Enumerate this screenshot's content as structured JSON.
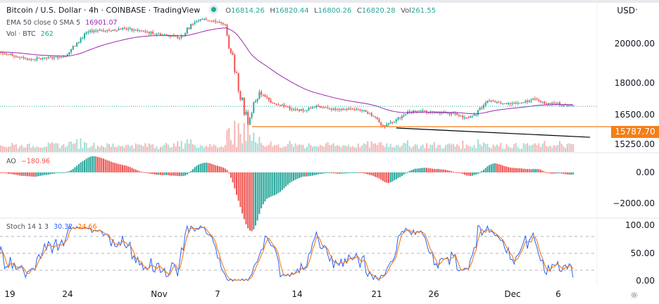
{
  "header": {
    "title": "Bitcoin / U.S. Dollar · 4h · COINBASE · TradingView",
    "ohlc": {
      "o_label": "O",
      "o": "16814.26",
      "h_label": "H",
      "h": "16820.44",
      "l_label": "L",
      "l": "16800.26",
      "c_label": "C",
      "c": "16820.28",
      "vol_label": "Vol",
      "vol": "261.55"
    },
    "ema_label": "EMA 50 close 0 SMA 5",
    "ema_value": "16901.07",
    "vol_label": "Vol · BTC",
    "vol_value": "262",
    "currency": "USD"
  },
  "indicators": {
    "ao_label": "AO",
    "ao_value": "−180.96",
    "stoch_label": "Stoch 14 1 3",
    "stoch_k": "30.32",
    "stoch_d": "24.66"
  },
  "colors": {
    "up": "#26a69a",
    "down": "#ef5350",
    "ema": "#9c27b0",
    "level": "#f57f17",
    "stoch_k": "#2962ff",
    "stoch_d": "#ff6d00",
    "trendline": "#000000"
  },
  "chart_data": [
    {
      "type": "candlestick",
      "title": "Bitcoin / U.S. Dollar · 4h · COINBASE",
      "x_tick_labels": [
        "19",
        "24",
        "Nov",
        "7",
        "14",
        "21",
        "26",
        "Dec",
        "6"
      ],
      "y_tick_labels": [
        "20000.00",
        "18000.00",
        "16500.00",
        "15250.00"
      ],
      "ylim": [
        15000,
        21400
      ],
      "dates": [
        "Oct 18",
        "Oct 19",
        "Oct 20",
        "Oct 21",
        "Oct 22",
        "Oct 23",
        "Oct 24",
        "Oct 25",
        "Oct 26",
        "Oct 27",
        "Oct 28",
        "Oct 29",
        "Oct 30",
        "Oct 31",
        "Nov 1",
        "Nov 2",
        "Nov 3",
        "Nov 4",
        "Nov 5",
        "Nov 6",
        "Nov 7",
        "Nov 8",
        "Nov 9",
        "Nov 10",
        "Nov 11",
        "Nov 12",
        "Nov 13",
        "Nov 14",
        "Nov 15",
        "Nov 16",
        "Nov 17",
        "Nov 18",
        "Nov 19",
        "Nov 20",
        "Nov 21",
        "Nov 22",
        "Nov 23",
        "Nov 24",
        "Nov 25",
        "Nov 26",
        "Nov 27",
        "Nov 28",
        "Nov 29",
        "Nov 30",
        "Dec 1",
        "Dec 2",
        "Dec 3",
        "Dec 4",
        "Dec 5",
        "Dec 6",
        "Dec 7",
        "Dec 8"
      ],
      "close": [
        19600,
        19450,
        19300,
        19200,
        19250,
        19300,
        19350,
        20050,
        20600,
        20700,
        20650,
        20800,
        20700,
        20600,
        20500,
        20400,
        20300,
        21000,
        21250,
        21150,
        20950,
        18500,
        15900,
        17550,
        17000,
        16900,
        16650,
        16600,
        16850,
        16700,
        16650,
        16680,
        16620,
        16300,
        15800,
        16150,
        16550,
        16580,
        16520,
        16500,
        16450,
        16250,
        16400,
        17100,
        17000,
        16950,
        17000,
        17200,
        16950,
        16980,
        16850,
        16820
      ],
      "ema_length": 50,
      "last_price": 16820.28,
      "horizontal_level": {
        "value": 15787.7,
        "label": "15787.70"
      },
      "trendline": {
        "from": {
          "date": "Nov 22",
          "value": 15720
        },
        "to": {
          "date": "Dec 9",
          "value": 15250
        }
      }
    },
    {
      "type": "bar",
      "name": "AO",
      "y_tick_labels": [
        "0.00",
        "−2000.00"
      ],
      "ylim": [
        -3000,
        600
      ],
      "last_value": -180.96
    },
    {
      "type": "line",
      "name": "Stoch 14 1 3",
      "y_tick_labels": [
        "100.00",
        "50.00",
        "0.00"
      ],
      "ylim": [
        0,
        100
      ],
      "bands": [
        20,
        50,
        80
      ],
      "last_k": 30.32,
      "last_d": 24.66
    }
  ]
}
